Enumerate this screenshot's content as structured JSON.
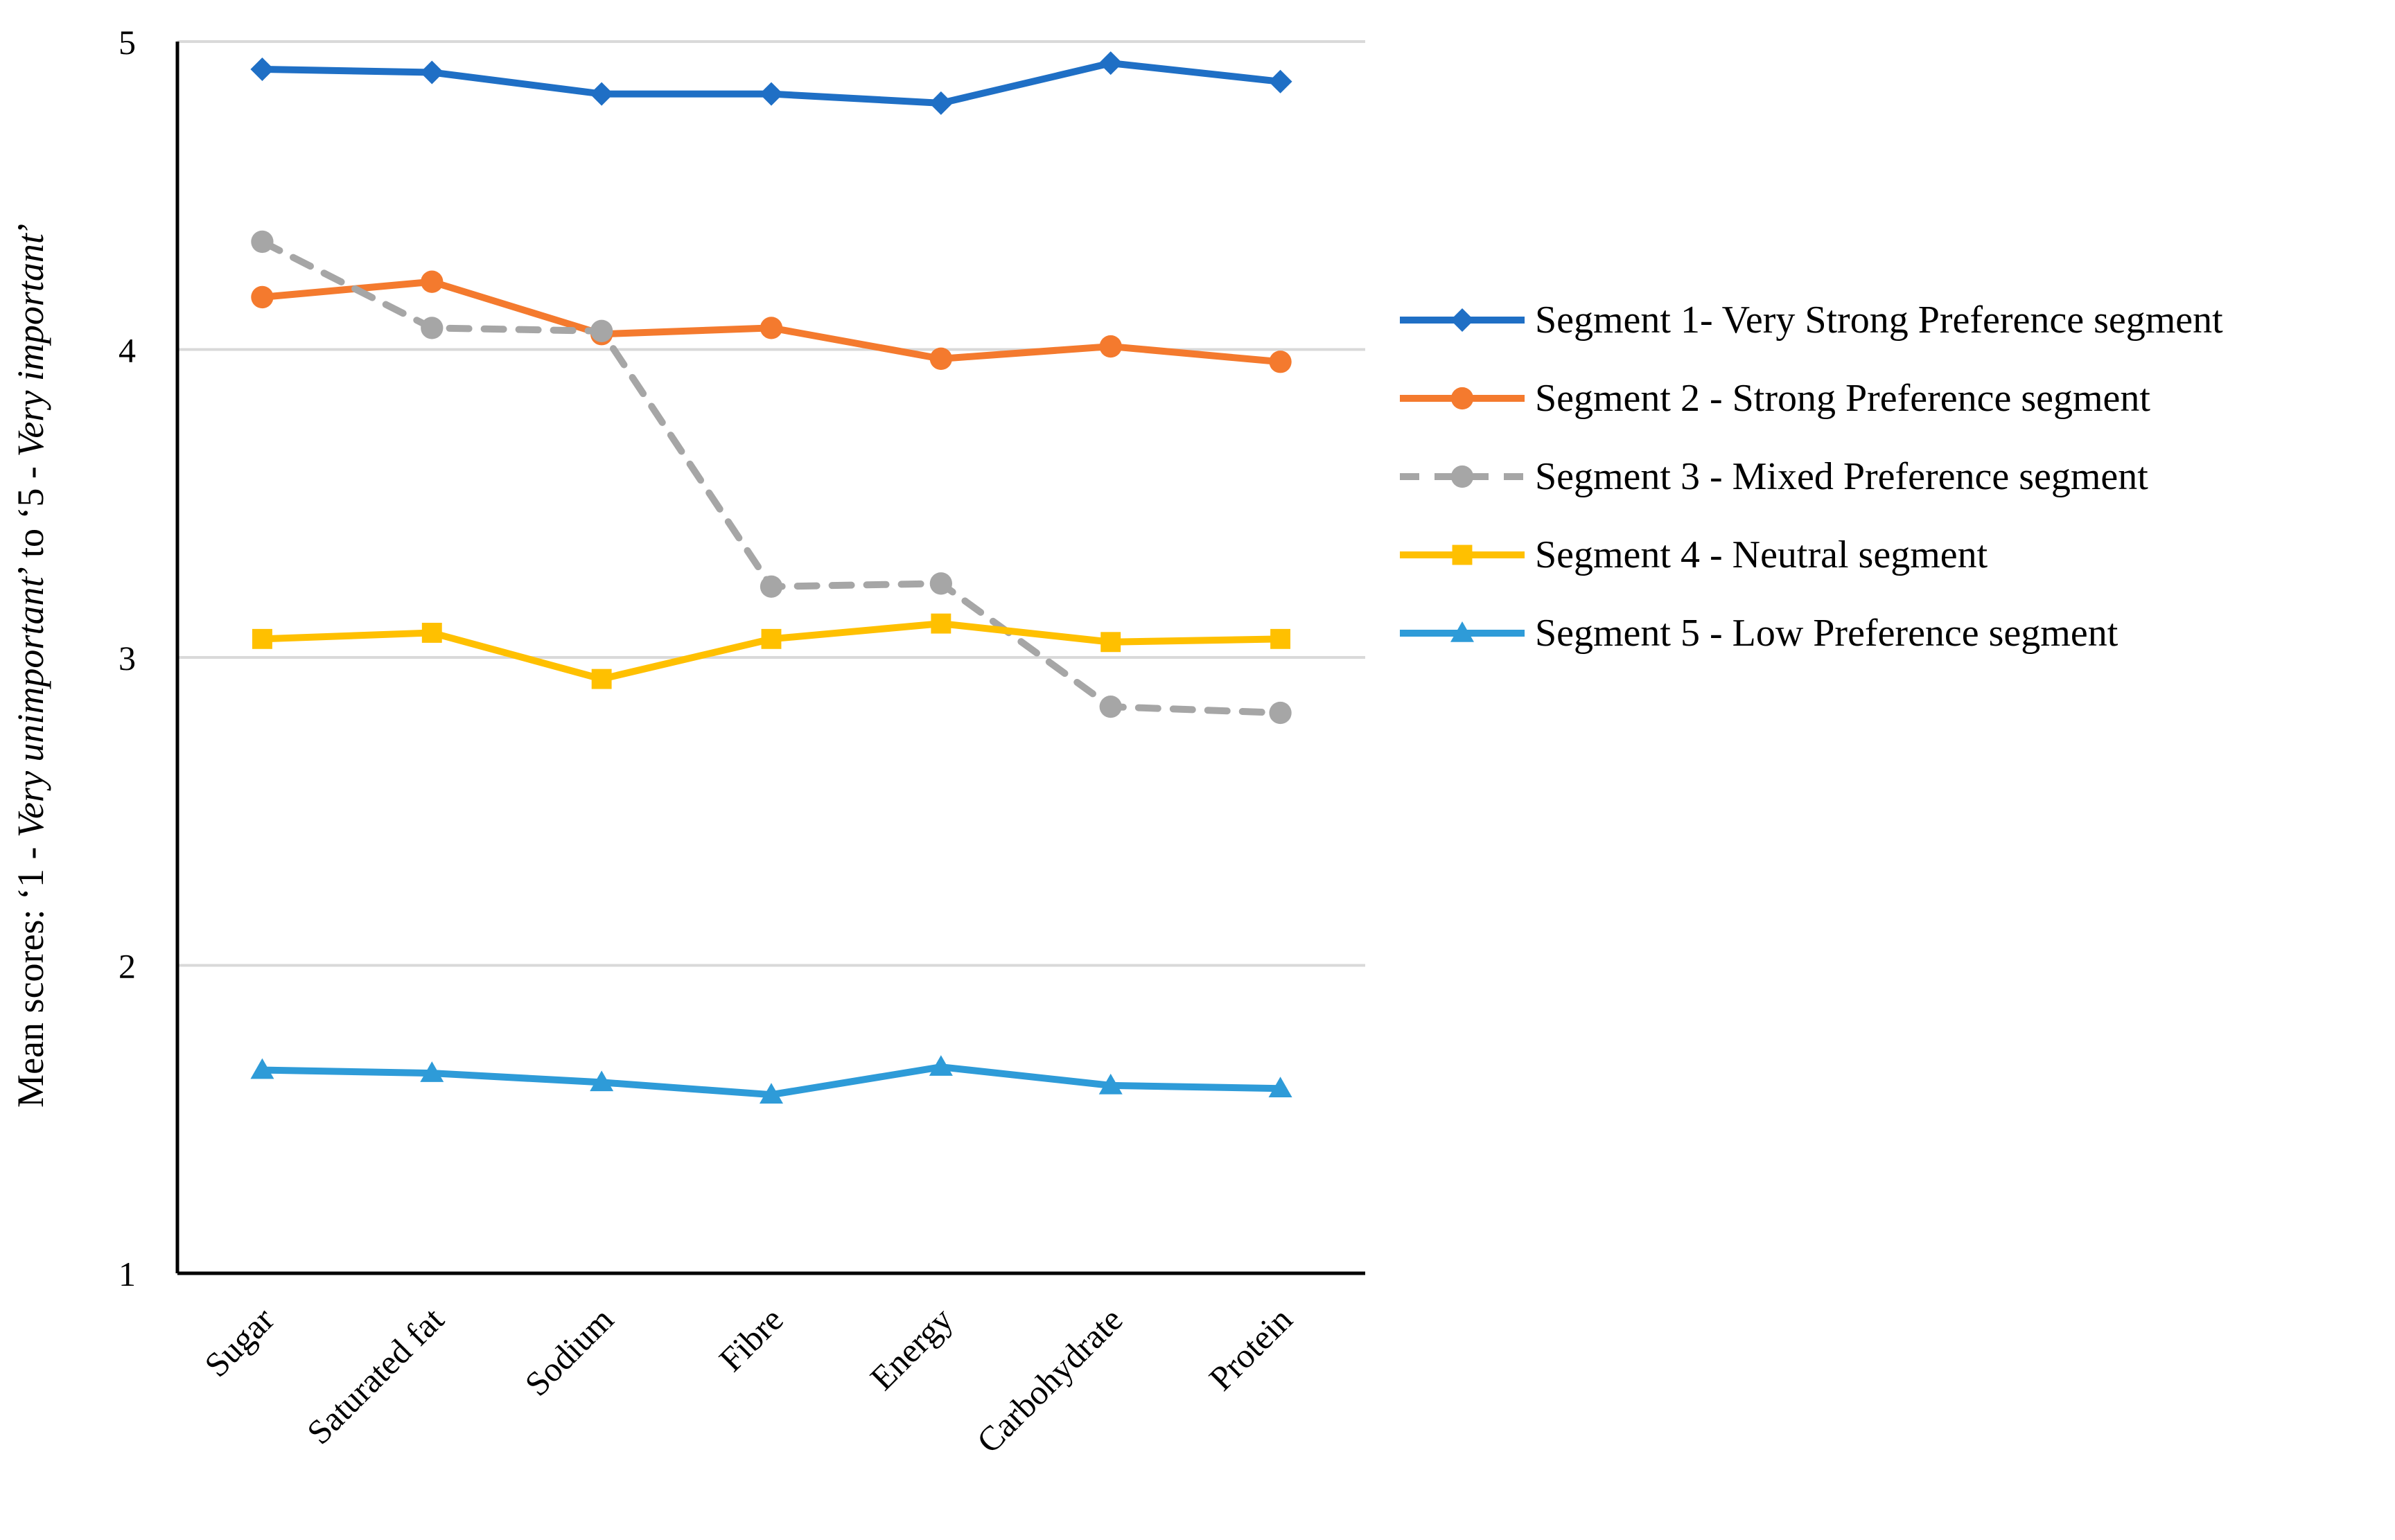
{
  "chart_data": {
    "type": "line",
    "categories": [
      "Sugar",
      "Saturated fat",
      "Sodium",
      "Fibre",
      "Energy",
      "Carbohydrate",
      "Protein"
    ],
    "ylim": [
      1,
      5
    ],
    "yticks": [
      1,
      2,
      3,
      4,
      5
    ],
    "grid": true,
    "legend_position": "right",
    "ylabel_parts": [
      {
        "text": "Mean scores: ‘1 - ",
        "italic": false
      },
      {
        "text": "Very unimportant",
        "italic": true
      },
      {
        "text": "’ to ‘5 - ",
        "italic": false
      },
      {
        "text": "Very important",
        "italic": true
      },
      {
        "text": "’",
        "italic": false
      }
    ],
    "series": [
      {
        "name": "Segment 1- Very Strong Preference segment",
        "color": "#1F6FC5",
        "marker": "diamond",
        "dash": false,
        "values": [
          4.91,
          4.9,
          4.83,
          4.83,
          4.8,
          4.93,
          4.87
        ]
      },
      {
        "name": "Segment 2 - Strong Preference segment",
        "color": "#F47A2E",
        "marker": "circle",
        "dash": false,
        "values": [
          4.17,
          4.22,
          4.05,
          4.07,
          3.97,
          4.01,
          3.96
        ]
      },
      {
        "name": "Segment 3 - Mixed Preference segment",
        "color": "#A6A6A6",
        "marker": "circle",
        "dash": true,
        "values": [
          4.35,
          4.07,
          4.06,
          3.23,
          3.24,
          2.84,
          2.82
        ]
      },
      {
        "name": "Segment 4 - Neutral segment",
        "color": "#FFC000",
        "marker": "square",
        "dash": false,
        "values": [
          3.06,
          3.08,
          2.93,
          3.06,
          3.11,
          3.05,
          3.06
        ]
      },
      {
        "name": "Segment 5 - Low Preference segment",
        "color": "#2E9BD8",
        "marker": "triangle",
        "dash": false,
        "values": [
          1.66,
          1.65,
          1.62,
          1.58,
          1.67,
          1.61,
          1.6
        ]
      }
    ]
  }
}
